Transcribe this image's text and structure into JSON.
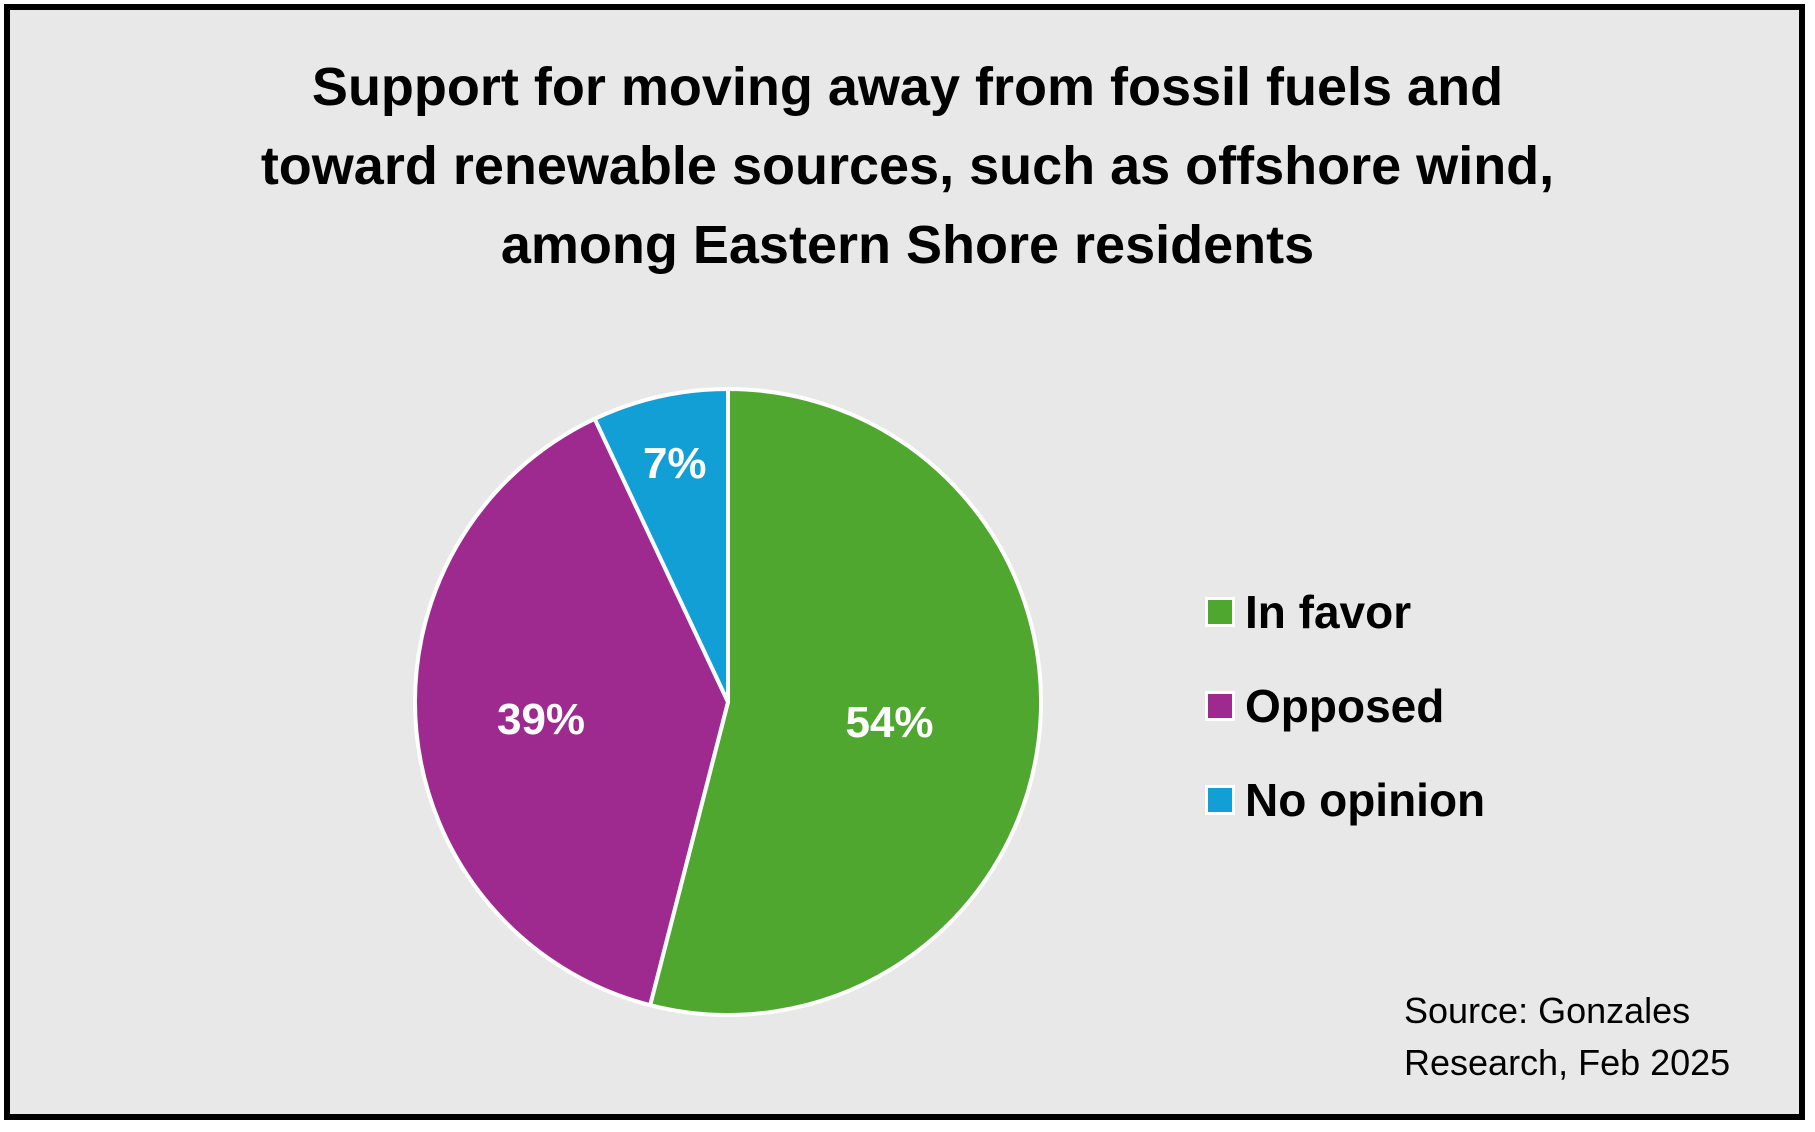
{
  "chart_data": {
    "type": "pie",
    "title": "Support for moving away from fossil fuels and toward renewable sources, such as offshore wind, among Eastern Shore residents",
    "categories": [
      "In favor",
      "Opposed",
      "No opinion"
    ],
    "values": [
      54,
      39,
      7
    ],
    "value_labels": [
      "54%",
      "39%",
      "7%"
    ],
    "colors": [
      "#4fa72f",
      "#9e2a8f",
      "#129fd6"
    ],
    "legend_position": "right",
    "source": [
      "Source: Gonzales",
      "Research, Feb 2025"
    ]
  }
}
